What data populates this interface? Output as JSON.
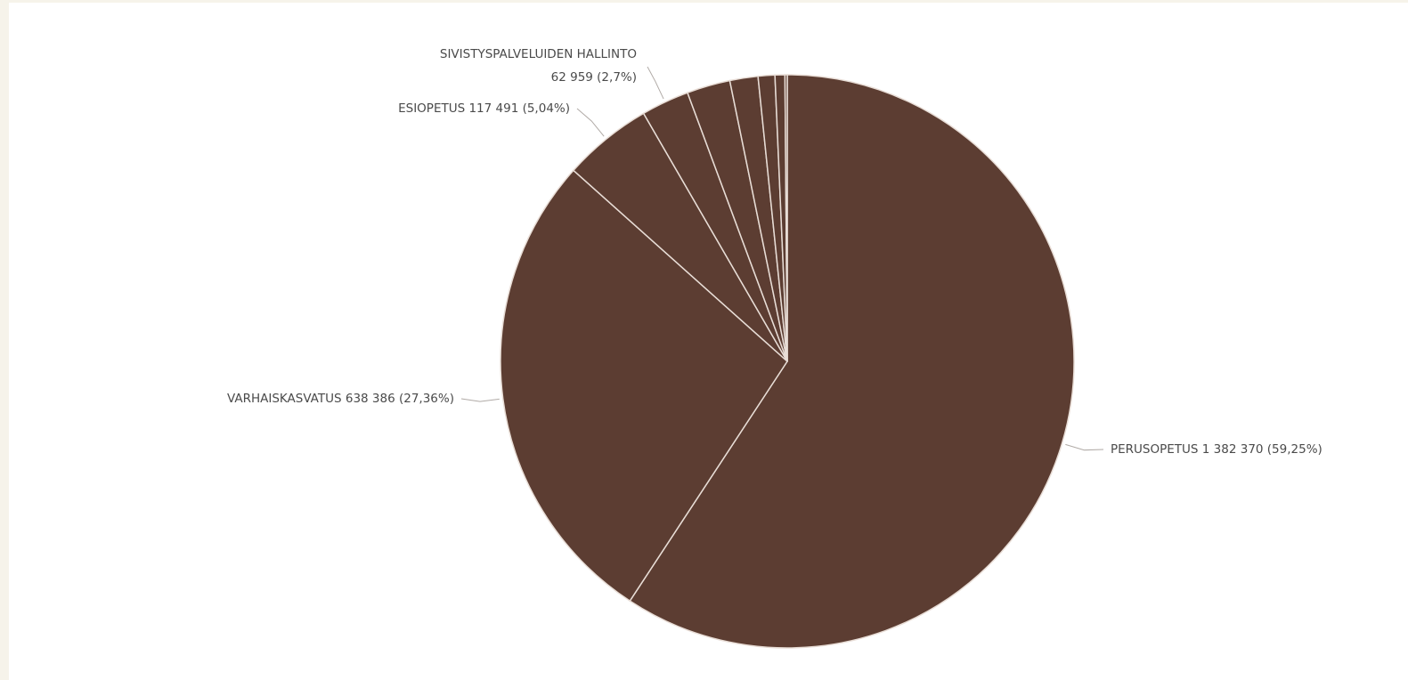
{
  "colors": {
    "page_background": "#f6f3ea",
    "panel_background": "#ffffff",
    "slice_fill": "#5c3d32",
    "slice_border": "#e8ddd6",
    "label_text": "#4a4a4a",
    "leader_line": "#b0aaa6"
  },
  "chart_data": {
    "type": "pie",
    "title": "",
    "start_angle": "12 o'clock",
    "direction": "clockwise",
    "slices": [
      {
        "category": "PERUSOPETUS",
        "value": 1382370,
        "percent": 59.25,
        "label_lines": [
          "PERUSOPETUS 1 382 370 (59,25%)"
        ]
      },
      {
        "category": "VARHAISKASVATUS",
        "value": 638386,
        "percent": 27.36,
        "label_lines": [
          "VARHAISKASVATUS 638 386 (27,36%)"
        ]
      },
      {
        "category": "ESIOPETUS",
        "value": 117491,
        "percent": 5.04,
        "label_lines": [
          "ESIOPETUS 117 491 (5,04%)"
        ]
      },
      {
        "category": "SIVISTYSPALVELUIDEN HALLINTO",
        "value": 62959,
        "percent": 2.7,
        "label_lines": [
          "SIVISTYSPALVELUIDEN HALLINTO",
          "62 959 (2,7%)"
        ]
      },
      {
        "category": "",
        "value": 57000,
        "percent": 2.44,
        "label_lines": []
      },
      {
        "category": "",
        "value": 37000,
        "percent": 1.59,
        "label_lines": []
      },
      {
        "category": "",
        "value": 22000,
        "percent": 0.94,
        "label_lines": []
      },
      {
        "category": "",
        "value": 13000,
        "percent": 0.56,
        "label_lines": []
      },
      {
        "category": "",
        "value": 3000,
        "percent": 0.12,
        "label_lines": []
      }
    ]
  }
}
